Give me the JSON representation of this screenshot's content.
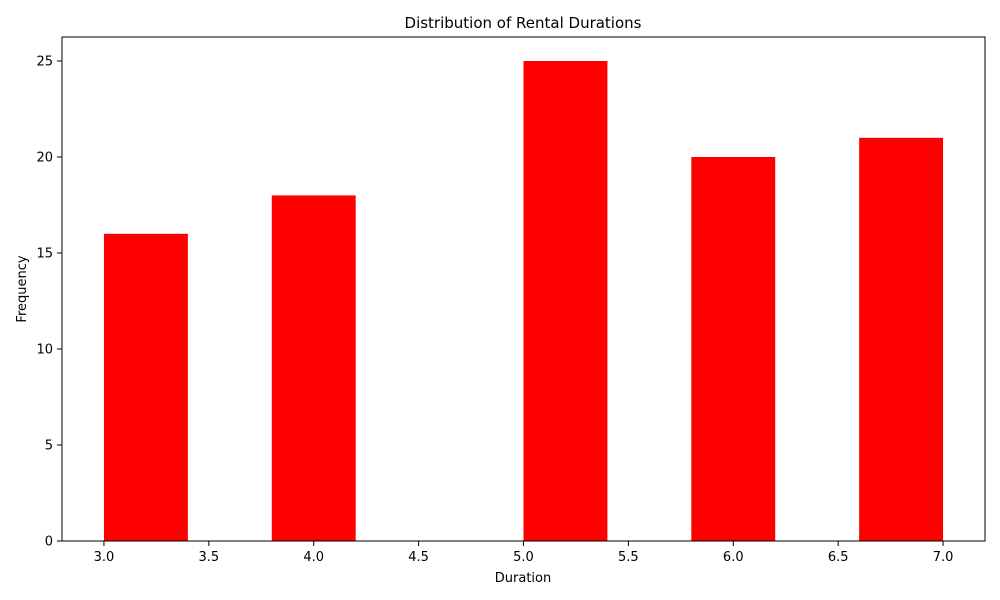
{
  "chart_data": {
    "type": "bar",
    "title": "Distribution of Rental Durations",
    "xlabel": "Duration",
    "ylabel": "Frequency",
    "bars": [
      {
        "x_start": 3.0,
        "x_end": 3.4,
        "value": 16
      },
      {
        "x_start": 3.8,
        "x_end": 4.2,
        "value": 18
      },
      {
        "x_start": 5.0,
        "x_end": 5.4,
        "value": 25
      },
      {
        "x_start": 5.8,
        "x_end": 6.2,
        "value": 20
      },
      {
        "x_start": 6.6,
        "x_end": 7.0,
        "value": 21
      }
    ],
    "bar_color": "#ff0000",
    "xlim": [
      2.8,
      7.2
    ],
    "ylim": [
      0,
      26.25
    ],
    "xticks": [
      "3.0",
      "3.5",
      "4.0",
      "4.5",
      "5.0",
      "5.5",
      "6.0",
      "6.5",
      "7.0"
    ],
    "yticks": [
      "0",
      "5",
      "10",
      "15",
      "20",
      "25"
    ],
    "grid": false,
    "legend": "none"
  }
}
